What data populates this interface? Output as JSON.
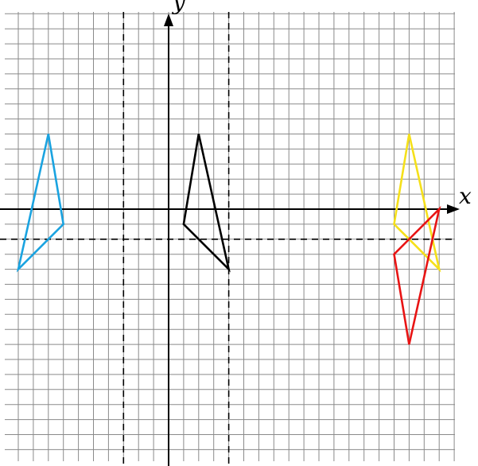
{
  "axes": {
    "x_label": "x",
    "y_label": "y"
  },
  "grid": {
    "x_min": -11,
    "x_max": 19,
    "y_min": -17,
    "y_max": 14,
    "step": 1,
    "color": "#8a8a8a"
  },
  "guide_lines": {
    "vertical_x": [
      -3,
      4
    ],
    "horizontal_y": [
      -2
    ],
    "style": "dashed"
  },
  "shapes": [
    {
      "name": "black-triangle",
      "color": "#000000",
      "vertices": [
        [
          2,
          5
        ],
        [
          1,
          -1
        ],
        [
          4,
          -4
        ]
      ]
    },
    {
      "name": "blue-triangle",
      "color": "#1aa3e0",
      "vertices": [
        [
          -8,
          5
        ],
        [
          -7,
          -1
        ],
        [
          -10,
          -4
        ]
      ]
    },
    {
      "name": "yellow-triangle",
      "color": "#f5e01a",
      "vertices": [
        [
          16,
          5
        ],
        [
          15,
          -1
        ],
        [
          18,
          -4
        ]
      ]
    },
    {
      "name": "red-triangle",
      "color": "#e81414",
      "vertices": [
        [
          16,
          -9
        ],
        [
          15,
          -3
        ],
        [
          18,
          0
        ]
      ]
    }
  ]
}
